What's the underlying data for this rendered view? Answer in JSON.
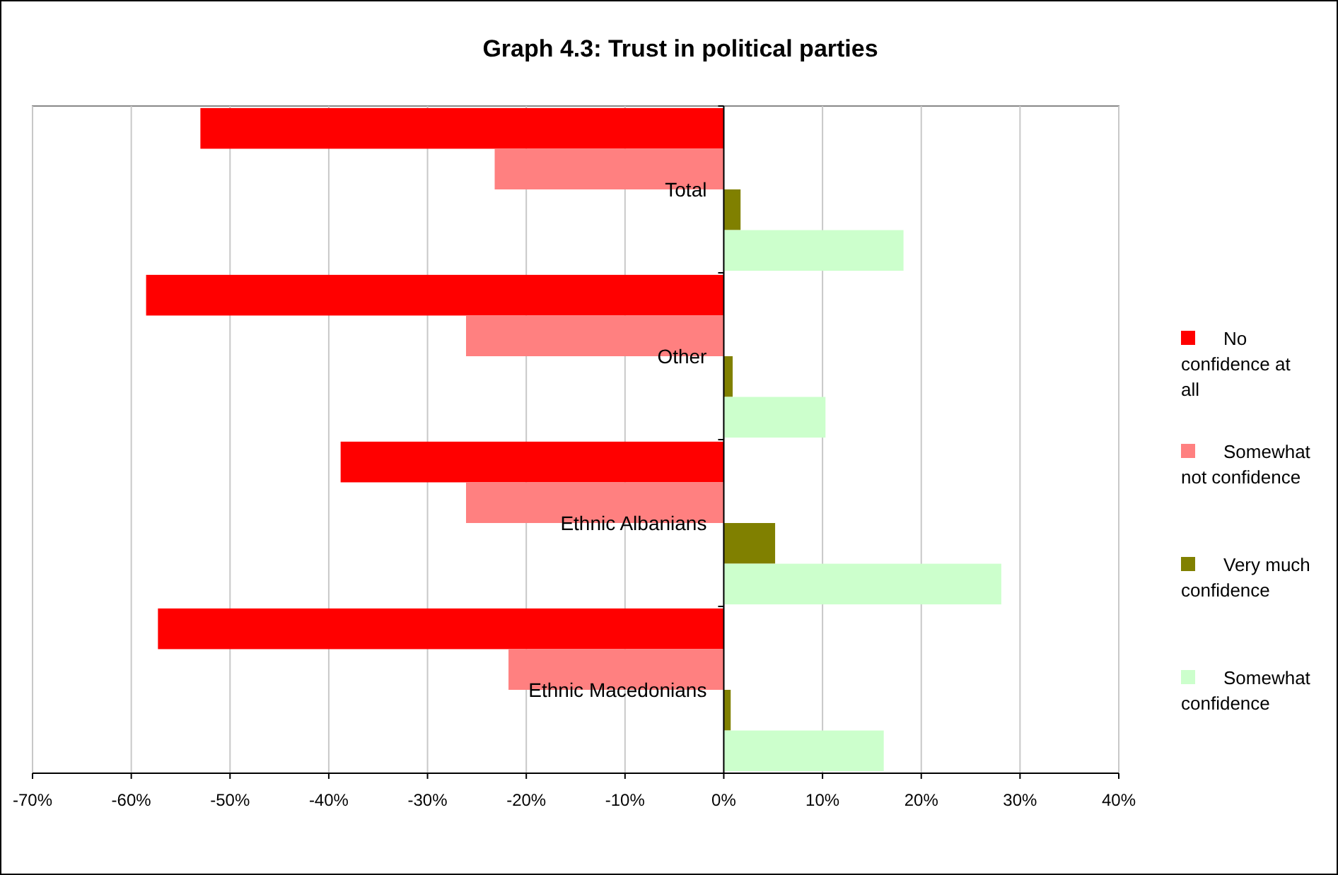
{
  "chart_data": {
    "type": "bar",
    "orientation": "horizontal",
    "title": "Graph 4.3: Trust in political parties",
    "categories": [
      "Total",
      "Other",
      "Ethnic Albanians",
      "Ethnic Macedonians"
    ],
    "series": [
      {
        "name": "No confidence at all",
        "color": "#ff0000",
        "values": [
          -53,
          -58.5,
          -38.8,
          -57.3
        ]
      },
      {
        "name": "Somewhat not confidence",
        "color": "#ff8080",
        "values": [
          -23.2,
          -26.1,
          -26.1,
          -21.8
        ]
      },
      {
        "name": "Very much confidence",
        "color": "#808000",
        "values": [
          1.7,
          0.9,
          5.2,
          0.7
        ]
      },
      {
        "name": "Somewhat confidence",
        "color": "#ccffcc",
        "values": [
          18.2,
          10.3,
          28.1,
          16.2
        ]
      }
    ],
    "xlim": [
      -70,
      40
    ],
    "xticks": [
      {
        "value": -70,
        "label": "-70%"
      },
      {
        "value": -60,
        "label": "-60%"
      },
      {
        "value": -50,
        "label": "-50%"
      },
      {
        "value": -40,
        "label": "-40%"
      },
      {
        "value": -30,
        "label": "-30%"
      },
      {
        "value": -20,
        "label": "-20%"
      },
      {
        "value": -10,
        "label": "-10%"
      },
      {
        "value": 0,
        "label": "0%"
      },
      {
        "value": 10,
        "label": "10%"
      },
      {
        "value": 20,
        "label": "20%"
      },
      {
        "value": 30,
        "label": "30%"
      },
      {
        "value": 40,
        "label": "40%"
      }
    ],
    "grid": "x",
    "legend": "right"
  }
}
